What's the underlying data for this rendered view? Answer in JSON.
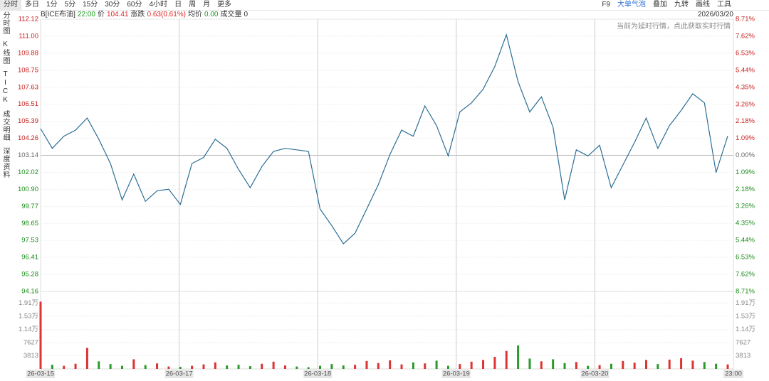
{
  "toolbar": {
    "tabs": [
      "分时",
      "多日",
      "1分",
      "5分",
      "15分",
      "30分",
      "60分",
      "4小时",
      "日",
      "周",
      "月",
      "更多"
    ],
    "tools": [
      "F9",
      "大单气泡",
      "叠加",
      "九转",
      "画线",
      "工具"
    ]
  },
  "sidebar": [
    "分时图",
    "K线图",
    "TICK",
    "成交明细",
    "深度资料"
  ],
  "info": {
    "symbol": "B[ICE布油]",
    "time": "22:00",
    "price_label": "价",
    "price": "104.41",
    "change_label": "涨跌",
    "change": "0.63(0.61%)",
    "avg_label": "均价",
    "avg": "0.00",
    "volume_label": "成交量",
    "volume": "0"
  },
  "date": "2026/03/20",
  "notice": "当前为延时行情，点此获取实时行情",
  "chart_data": {
    "type": "line",
    "x_labels": [
      "26-03-15",
      "26-03-17",
      "26-03-18",
      "26-03-19",
      "26-03-20",
      "23:00"
    ],
    "series": [
      {
        "color": "#2b6e94",
        "values": [
          104.9,
          103.6,
          104.4,
          104.8,
          105.6,
          104.2,
          102.6,
          100.2,
          101.9,
          100.1,
          100.8,
          100.9,
          99.9,
          102.6,
          103.0,
          104.2,
          103.6,
          102.2,
          101.0,
          102.4,
          103.4,
          103.6,
          103.5,
          103.4,
          99.6,
          98.5,
          97.3,
          98.0,
          99.6,
          101.2,
          103.2,
          104.8,
          104.4,
          106.4,
          105.1,
          103.1,
          106.0,
          106.6,
          107.5,
          109.0,
          111.1,
          108.0,
          106.0,
          107.0,
          105.0,
          100.2,
          103.5,
          103.1,
          103.8,
          101.0,
          102.5,
          104.0,
          105.6,
          103.6,
          105.1,
          106.1,
          107.2,
          106.6,
          102.0,
          104.41
        ]
      }
    ],
    "ylim": [
      94.16,
      112.12
    ],
    "yticks": [
      112.12,
      {
        "value": 111,
        "label": "111.00"
      },
      109.88,
      108.75,
      107.63,
      106.51,
      105.39,
      104.26,
      103.14,
      102.02,
      {
        "value": 100.9,
        "label": "100.90"
      },
      99.77,
      98.65,
      97.53,
      96.41,
      95.28,
      94.16
    ],
    "y2lim": [
      -8.71,
      8.71
    ],
    "y2ticks": [
      {
        "value": 8.71,
        "label": "8.71%"
      },
      {
        "value": 7.62,
        "label": "7.62%"
      },
      {
        "value": 6.53,
        "label": "6.53%"
      },
      {
        "value": 5.44,
        "label": "5.44%"
      },
      {
        "value": 4.35,
        "label": "4.35%"
      },
      {
        "value": 3.26,
        "label": "3.26%"
      },
      {
        "value": 2.18,
        "label": "2.18%"
      },
      {
        "value": 1.09,
        "label": "1.09%"
      },
      {
        "value": 0,
        "label": "0.00%"
      },
      {
        "value": -1.09,
        "label": "1.09%"
      },
      {
        "value": -2.18,
        "label": "2.18%"
      },
      {
        "value": -3.26,
        "label": "3.26%"
      },
      {
        "value": -4.35,
        "label": "4.35%"
      },
      {
        "value": -5.44,
        "label": "5.44%"
      },
      {
        "value": -6.53,
        "label": "6.53%"
      },
      {
        "value": -7.62,
        "label": "7.62%"
      },
      {
        "value": -8.71,
        "label": "8.71%"
      }
    ],
    "volume": {
      "values": [
        19500,
        1200,
        900,
        1500,
        6100,
        2200,
        1400,
        900,
        2800,
        1100,
        1600,
        700,
        600,
        900,
        1300,
        1900,
        1000,
        1200,
        800,
        1500,
        2100,
        1000,
        700,
        500,
        900,
        1400,
        1000,
        1200,
        2300,
        1700,
        2500,
        1300,
        1900,
        1600,
        2400,
        900,
        1400,
        2100,
        2600,
        3500,
        5200,
        6800,
        3000,
        2200,
        2800,
        1700,
        2000,
        900,
        1100,
        1500,
        2300,
        1800,
        2600,
        1400,
        2700,
        3100,
        2400,
        2000,
        1500,
        1300
      ],
      "ylim": [
        0,
        22470
      ],
      "yticks": [
        {
          "value": 19100,
          "label": "1.91万"
        },
        {
          "value": 15300,
          "label": "1.53万"
        },
        {
          "value": 11400,
          "label": "1.14万"
        },
        7627,
        3813
      ]
    }
  }
}
